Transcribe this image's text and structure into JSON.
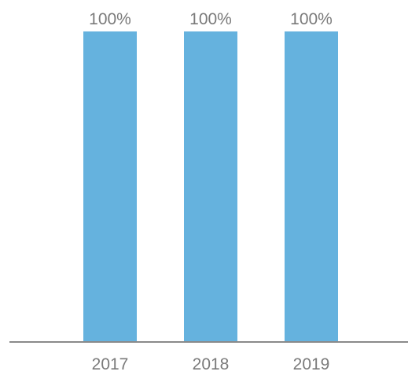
{
  "chart_data": {
    "type": "bar",
    "categories": [
      "2017",
      "2018",
      "2019"
    ],
    "values": [
      100,
      100,
      100
    ],
    "data_labels": [
      "100%",
      "100%",
      "100%"
    ],
    "title": "",
    "xlabel": "",
    "ylabel": "",
    "ylim": [
      0,
      100
    ],
    "grid": false,
    "legend": "none",
    "colors": {
      "bar": "#65b2de",
      "axis": "#8a8a8a",
      "text": "#7a7a7a"
    }
  }
}
